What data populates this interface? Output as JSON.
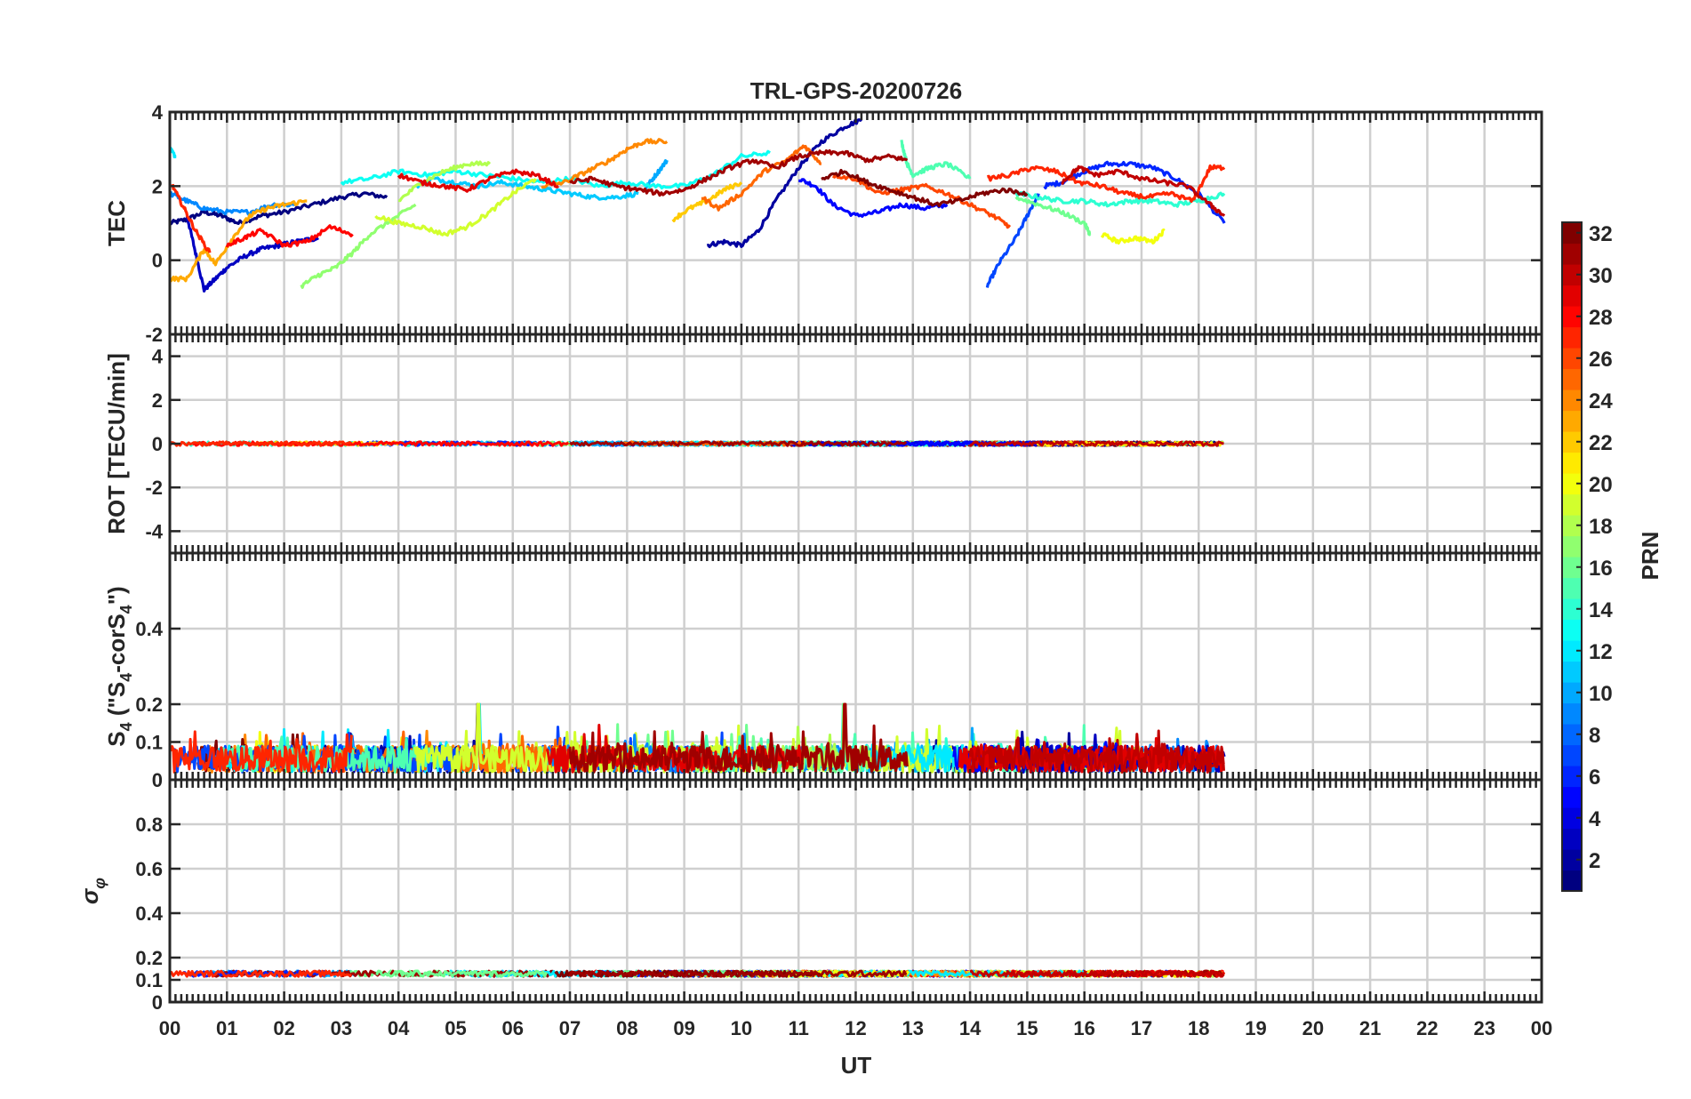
{
  "figure": {
    "title": "TRL-GPS-20200726",
    "xlabel": "UT",
    "x_ticks": [
      "00",
      "01",
      "02",
      "03",
      "04",
      "05",
      "06",
      "07",
      "08",
      "09",
      "10",
      "11",
      "12",
      "13",
      "14",
      "15",
      "16",
      "17",
      "18",
      "19",
      "20",
      "21",
      "22",
      "23",
      "00"
    ]
  },
  "colorbar": {
    "label": "PRN",
    "range": [
      1,
      32
    ],
    "ticks": [
      2,
      4,
      6,
      8,
      10,
      12,
      14,
      16,
      18,
      20,
      22,
      24,
      26,
      28,
      30,
      32
    ],
    "colormap": "jet"
  },
  "chart_data": [
    {
      "type": "line",
      "panel": "TEC",
      "ylabel": "TEC",
      "xlim": [
        0,
        24
      ],
      "ylim": [
        -2,
        4
      ],
      "y_ticks": [
        -2,
        0,
        2,
        4
      ],
      "grid": true,
      "series": [
        {
          "prn": 1,
          "x": [
            0.0,
            0.3,
            0.6,
            0.9,
            1.2,
            1.6,
            2.0,
            2.5,
            3.0,
            3.4,
            3.8
          ],
          "y": [
            1.0,
            1.1,
            1.3,
            1.2,
            1.0,
            1.2,
            1.3,
            1.5,
            1.7,
            1.8,
            1.7
          ]
        },
        {
          "prn": 3,
          "x": [
            0.3,
            0.45,
            0.6,
            0.8,
            1.0,
            1.3,
            1.6,
            1.9,
            2.2,
            2.6
          ],
          "y": [
            1.2,
            0.2,
            -0.8,
            -0.5,
            -0.2,
            0.1,
            0.3,
            0.4,
            0.5,
            0.6
          ]
        },
        {
          "prn": 2,
          "x": [
            9.4,
            9.7,
            10.0,
            10.3,
            10.6,
            11.0,
            11.4,
            11.8,
            12.1
          ],
          "y": [
            0.4,
            0.5,
            0.4,
            0.8,
            1.6,
            2.5,
            3.2,
            3.6,
            3.8
          ]
        },
        {
          "prn": 5,
          "x": [
            11.0,
            11.3,
            11.6,
            12.0,
            12.4,
            12.8,
            13.2,
            13.6
          ],
          "y": [
            2.2,
            2.0,
            1.5,
            1.2,
            1.3,
            1.5,
            1.4,
            1.5
          ]
        },
        {
          "prn": 6,
          "x": [
            15.3,
            15.6,
            16.0,
            16.4,
            16.8,
            17.2,
            17.6,
            18.0,
            18.45
          ],
          "y": [
            2.0,
            2.1,
            2.4,
            2.6,
            2.6,
            2.5,
            2.2,
            1.8,
            1.0
          ]
        },
        {
          "prn": 7,
          "x": [
            14.3,
            14.5,
            14.8,
            15.0,
            15.2
          ],
          "y": [
            -0.7,
            -0.1,
            0.6,
            1.2,
            1.8
          ]
        },
        {
          "prn": 9,
          "x": [
            0.0,
            0.3,
            0.6,
            1.0,
            1.4,
            1.8,
            2.2
          ],
          "y": [
            1.8,
            1.6,
            1.4,
            1.3,
            1.3,
            1.5,
            1.5
          ]
        },
        {
          "prn": 10,
          "x": [
            8.3,
            8.5,
            8.7
          ],
          "y": [
            1.9,
            2.3,
            2.7
          ]
        },
        {
          "prn": 11,
          "x": [
            4.3,
            4.6,
            5.0,
            5.4,
            5.8,
            6.2,
            6.6,
            7.0,
            7.4,
            7.8,
            8.2
          ],
          "y": [
            2.0,
            2.2,
            2.1,
            2.0,
            2.1,
            2.0,
            1.9,
            1.8,
            1.7,
            1.7,
            1.8
          ]
        },
        {
          "prn": 12,
          "x": [
            0.0,
            0.1
          ],
          "y": [
            3.0,
            2.8
          ]
        },
        {
          "prn": 13,
          "x": [
            3.0,
            3.5,
            4.0,
            4.5,
            5.0,
            5.5,
            6.0,
            6.5,
            7.0,
            7.5,
            8.0,
            8.5,
            9.0,
            9.5,
            10.0,
            10.5
          ],
          "y": [
            2.1,
            2.2,
            2.4,
            2.3,
            2.4,
            2.3,
            2.2,
            2.1,
            2.2,
            2.0,
            2.1,
            2.0,
            2.0,
            2.3,
            2.8,
            2.9
          ]
        },
        {
          "prn": 14,
          "x": [
            14.8,
            15.2,
            15.6,
            16.0,
            16.4,
            16.8,
            17.2,
            17.6,
            18.0,
            18.45
          ],
          "y": [
            1.8,
            1.7,
            1.6,
            1.6,
            1.5,
            1.6,
            1.6,
            1.5,
            1.6,
            1.8
          ]
        },
        {
          "prn": 15,
          "x": [
            12.8,
            12.9,
            13.0,
            13.3,
            13.6,
            14.0
          ],
          "y": [
            3.2,
            2.6,
            2.3,
            2.5,
            2.6,
            2.2
          ]
        },
        {
          "prn": 16,
          "x": [
            14.8,
            15.2,
            15.6,
            16.0,
            16.1
          ],
          "y": [
            1.7,
            1.5,
            1.3,
            1.0,
            0.7
          ]
        },
        {
          "prn": 17,
          "x": [
            2.3,
            2.6,
            2.9,
            3.2,
            3.5,
            3.9,
            4.3
          ],
          "y": [
            -0.7,
            -0.4,
            -0.2,
            0.2,
            0.7,
            1.1,
            1.5
          ]
        },
        {
          "prn": 18,
          "x": [
            4.0,
            4.4,
            4.8,
            5.2,
            5.6
          ],
          "y": [
            1.6,
            2.1,
            2.4,
            2.6,
            2.6
          ]
        },
        {
          "prn": 19,
          "x": [
            3.6,
            4.0,
            4.4,
            4.8,
            5.2,
            5.6,
            6.0,
            6.4
          ],
          "y": [
            1.2,
            1.0,
            0.9,
            0.7,
            0.9,
            1.3,
            1.8,
            2.2
          ]
        },
        {
          "prn": 20,
          "x": [
            16.3,
            16.6,
            16.9,
            17.2,
            17.4
          ],
          "y": [
            0.7,
            0.5,
            0.6,
            0.5,
            0.8
          ]
        },
        {
          "prn": 22,
          "x": [
            8.8,
            9.1,
            9.4,
            9.7,
            10.0
          ],
          "y": [
            1.1,
            1.4,
            1.6,
            1.9,
            2.1
          ]
        },
        {
          "prn": 23,
          "x": [
            0.0,
            0.3,
            0.6,
            0.8,
            1.1,
            1.4,
            1.7,
            2.0,
            2.4
          ],
          "y": [
            -0.5,
            -0.5,
            0.3,
            -0.1,
            0.6,
            1.2,
            1.4,
            1.5,
            1.6
          ]
        },
        {
          "prn": 24,
          "x": [
            6.5,
            6.9,
            7.3,
            7.7,
            8.0,
            8.3,
            8.7
          ],
          "y": [
            2.0,
            2.1,
            2.4,
            2.7,
            3.0,
            3.2,
            3.2
          ]
        },
        {
          "prn": 25,
          "x": [
            9.3,
            9.6,
            10.0,
            10.4,
            10.8,
            11.1,
            11.4
          ],
          "y": [
            1.7,
            1.4,
            1.8,
            2.4,
            2.7,
            3.1,
            2.6
          ]
        },
        {
          "prn": 26,
          "x": [
            11.6,
            12.0,
            12.4,
            12.8,
            13.2,
            13.6,
            14.0,
            14.4,
            14.7
          ],
          "y": [
            2.3,
            2.2,
            1.8,
            1.9,
            2.0,
            1.8,
            1.5,
            1.2,
            0.9
          ]
        },
        {
          "prn": 27,
          "x": [
            0.05,
            0.25,
            0.45,
            0.7
          ],
          "y": [
            2.0,
            1.4,
            0.8,
            0.2
          ]
        },
        {
          "prn": 28,
          "x": [
            1.0,
            1.3,
            1.6,
            2.0,
            2.4,
            2.8,
            3.2
          ],
          "y": [
            0.4,
            0.6,
            0.8,
            0.4,
            0.5,
            0.9,
            0.7
          ]
        },
        {
          "prn": 29,
          "x": [
            4.0,
            4.4,
            4.8,
            5.2,
            5.6,
            6.0,
            6.4,
            6.8
          ],
          "y": [
            2.3,
            2.1,
            2.0,
            1.9,
            2.2,
            2.4,
            2.3,
            2.0
          ]
        },
        {
          "prn": 27,
          "x": [
            14.3,
            14.7,
            15.1,
            15.5,
            15.9,
            16.3,
            16.7,
            17.1,
            17.5,
            17.9,
            18.2,
            18.45
          ],
          "y": [
            2.2,
            2.3,
            2.5,
            2.4,
            2.1,
            2.0,
            1.8,
            1.7,
            1.8,
            1.6,
            2.5,
            2.5
          ]
        },
        {
          "prn": 30,
          "x": [
            15.6,
            15.9,
            16.2,
            16.6,
            17.0,
            17.4,
            17.8,
            18.2,
            18.45
          ],
          "y": [
            2.1,
            2.5,
            2.3,
            2.4,
            2.2,
            2.1,
            2.0,
            1.5,
            1.2
          ]
        },
        {
          "prn": 31,
          "x": [
            7.0,
            7.4,
            7.8,
            8.2,
            8.6,
            9.0,
            9.4,
            9.8,
            10.2,
            10.6,
            11.0,
            11.4,
            11.8,
            12.2,
            12.6,
            12.9
          ],
          "y": [
            2.1,
            2.2,
            2.0,
            1.9,
            1.8,
            1.9,
            2.2,
            2.5,
            2.7,
            2.5,
            2.8,
            2.9,
            2.9,
            2.7,
            2.8,
            2.7
          ]
        },
        {
          "prn": 32,
          "x": [
            11.4,
            11.8,
            12.2,
            12.6,
            13.0,
            13.4,
            13.8,
            14.2,
            14.6,
            15.0
          ],
          "y": [
            2.2,
            2.4,
            2.1,
            1.9,
            1.7,
            1.5,
            1.6,
            1.8,
            1.9,
            1.8
          ]
        }
      ]
    },
    {
      "type": "line",
      "panel": "ROT",
      "ylabel": "ROT [TECU/min]",
      "xlim": [
        0,
        24
      ],
      "ylim": [
        -5,
        5
      ],
      "y_ticks": [
        -4,
        -2,
        0,
        2,
        4
      ],
      "grid": true,
      "note": "all satellites near 0 TECU/min (|ROT| < 0.2) between 00 and 18.45 UT"
    },
    {
      "type": "line",
      "panel": "S4",
      "ylabel": "S4 (\"S4-corS4\")",
      "xlim": [
        0,
        24
      ],
      "ylim": [
        0,
        0.6
      ],
      "y_ticks": [
        0,
        0.1,
        0.2,
        0.4
      ],
      "grid": true,
      "note": "noise-level S4 mostly 0.02-0.12 with spikes up to ~0.22 near 05.4 and 11.8 UT; data from 00 to 18.45 UT"
    },
    {
      "type": "line",
      "panel": "SigmaPhi",
      "ylabel": "σφ",
      "xlim": [
        0,
        24
      ],
      "ylim": [
        0,
        1
      ],
      "y_ticks": [
        0,
        0.1,
        0.2,
        0.4,
        0.6,
        0.8
      ],
      "grid": true,
      "note": "phase scintillation index steady near 0.12-0.15 from 00 to 18.45 UT"
    }
  ]
}
